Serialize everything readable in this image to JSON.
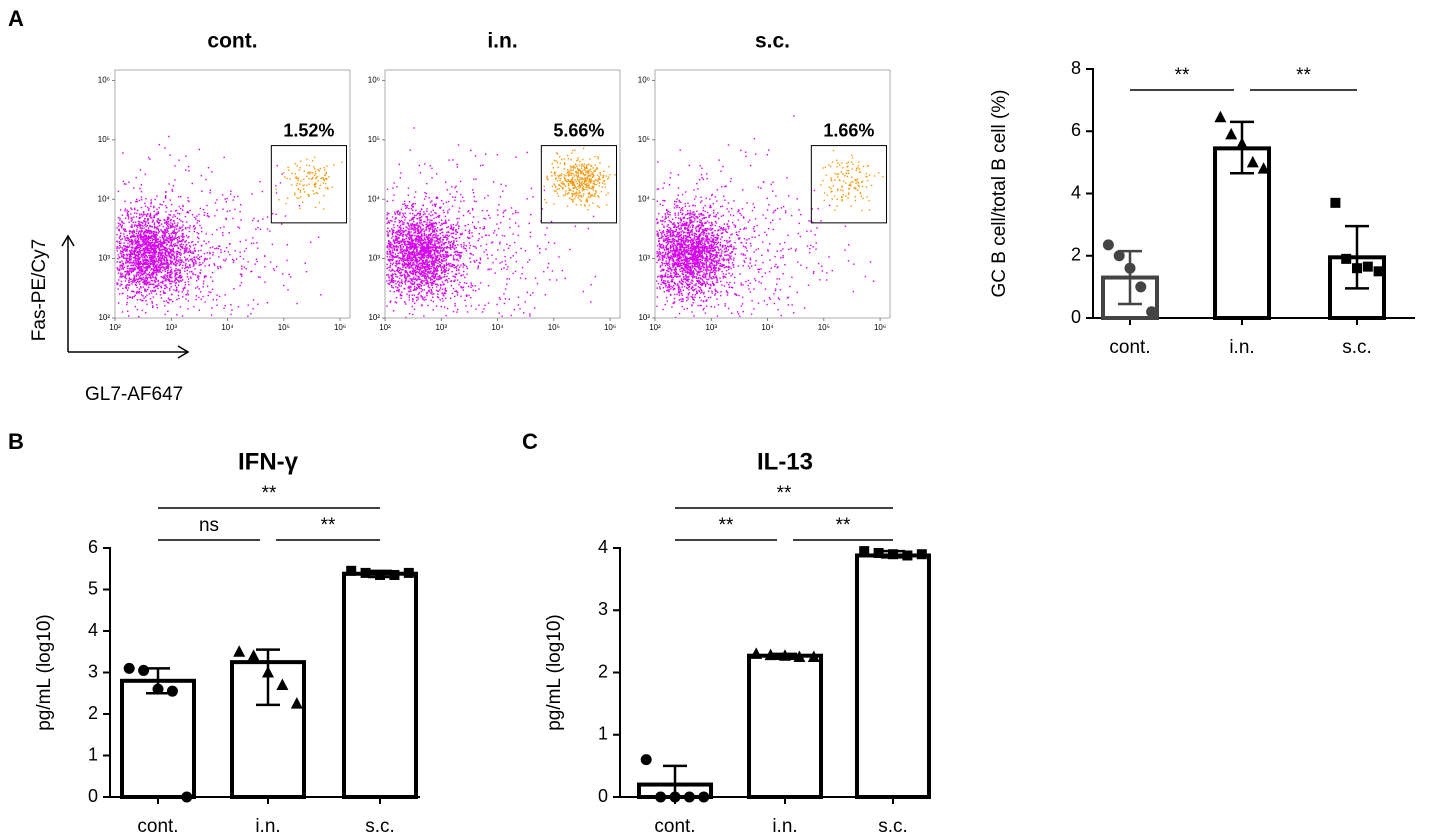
{
  "panel_labels": [
    "A",
    "B",
    "C"
  ],
  "flow_axes": {
    "y_label": "Fas-PE/Cy7",
    "x_label": "GL7-AF647"
  },
  "chart_data": [
    {
      "type": "flow",
      "title": "cont.",
      "values": [
        1.52
      ],
      "value_labels": [
        "1.52%"
      ],
      "log_scale": true,
      "xlim": [
        100,
        1500000
      ],
      "ylim": [
        100,
        1500000
      ],
      "xticks": [
        {
          "value": 100,
          "label": "10²"
        },
        {
          "value": 1000,
          "label": "10³"
        },
        {
          "value": 10000,
          "label": "10⁴"
        },
        {
          "value": 100000,
          "label": "10⁵"
        },
        {
          "value": 1000000,
          "label": "10⁶"
        }
      ],
      "yticks": [
        {
          "value": 100,
          "label": "10²"
        },
        {
          "value": 1000,
          "label": "10³"
        },
        {
          "value": 10000,
          "label": "10⁴"
        },
        {
          "value": 100000,
          "label": "10⁵"
        },
        {
          "value": 1000000,
          "label": "10⁶"
        }
      ],
      "color": "#d600f0",
      "gate_color": "#f39a10"
    },
    {
      "type": "flow",
      "title": "i.n.",
      "values": [
        5.66
      ],
      "value_labels": [
        "5.66%"
      ],
      "log_scale": true,
      "xlim": [
        100,
        1500000
      ],
      "ylim": [
        100,
        1500000
      ],
      "xticks": [
        {
          "value": 100,
          "label": "10²"
        },
        {
          "value": 1000,
          "label": "10³"
        },
        {
          "value": 10000,
          "label": "10⁴"
        },
        {
          "value": 100000,
          "label": "10⁵"
        },
        {
          "value": 1000000,
          "label": "10⁶"
        }
      ],
      "yticks": [
        {
          "value": 100,
          "label": "10²"
        },
        {
          "value": 1000,
          "label": "10³"
        },
        {
          "value": 10000,
          "label": "10⁴"
        },
        {
          "value": 100000,
          "label": "10⁵"
        },
        {
          "value": 1000000,
          "label": "10⁶"
        }
      ],
      "color": "#d600f0",
      "gate_color": "#f39a10"
    },
    {
      "type": "flow",
      "title": "s.c.",
      "values": [
        1.66
      ],
      "value_labels": [
        "1.66%"
      ],
      "log_scale": true,
      "xlim": [
        100,
        1500000
      ],
      "ylim": [
        100,
        1500000
      ],
      "xticks": [
        {
          "value": 100,
          "label": "10²"
        },
        {
          "value": 1000,
          "label": "10³"
        },
        {
          "value": 10000,
          "label": "10⁴"
        },
        {
          "value": 100000,
          "label": "10⁵"
        },
        {
          "value": 1000000,
          "label": "10⁶"
        }
      ],
      "yticks": [
        {
          "value": 100,
          "label": "10²"
        },
        {
          "value": 1000,
          "label": "10³"
        },
        {
          "value": 10000,
          "label": "10⁴"
        },
        {
          "value": 100000,
          "label": "10⁵"
        },
        {
          "value": 1000000,
          "label": "10⁶"
        }
      ],
      "color": "#d600f0",
      "gate_color": "#f39a10"
    },
    {
      "type": "bar",
      "y_label": "GC B cell/total B cell (%)",
      "categories": [
        "cont.",
        "i.n.",
        "s.c."
      ],
      "values": [
        1.3,
        5.45,
        1.95
      ],
      "error_bars": [
        [
          0.45,
          2.15
        ],
        [
          4.65,
          6.3
        ],
        [
          0.95,
          2.95
        ]
      ],
      "points": [
        [
          2.35,
          2.0,
          1.6,
          1.0,
          0.2
        ],
        [
          6.45,
          5.9,
          5.6,
          5.0,
          4.8
        ],
        [
          3.7,
          1.9,
          1.6,
          1.65,
          1.5
        ]
      ],
      "markers": [
        "circle",
        "triangle",
        "square"
      ],
      "colors": [
        "#444444",
        "#000000",
        "#000000"
      ],
      "ylim": [
        0,
        8
      ],
      "yticks": [
        0,
        2,
        4,
        6,
        8
      ],
      "comparisons": [
        {
          "groups": [
            "cont.",
            "i.n."
          ],
          "label": "**"
        },
        {
          "groups": [
            "i.n.",
            "s.c."
          ],
          "label": "**"
        }
      ]
    },
    {
      "type": "bar",
      "title": "IFN-γ",
      "y_label": "pg/mL (log10)",
      "categories": [
        "cont.",
        "i.n.",
        "s.c."
      ],
      "values": [
        2.8,
        3.25,
        5.38
      ],
      "error_bars": [
        [
          2.5,
          3.1
        ],
        [
          2.22,
          3.55
        ],
        [
          5.3,
          5.45
        ]
      ],
      "points": [
        [
          3.1,
          3.05,
          2.6,
          2.55,
          0.0
        ],
        [
          3.5,
          3.4,
          3.0,
          2.7,
          2.25
        ],
        [
          5.45,
          5.4,
          5.35,
          5.35,
          5.4
        ]
      ],
      "markers": [
        "circle",
        "triangle",
        "square"
      ],
      "colors": [
        "#000000",
        "#000000",
        "#000000"
      ],
      "ylim": [
        0,
        6
      ],
      "yticks": [
        0,
        1,
        2,
        3,
        4,
        5,
        6
      ],
      "comparisons": [
        {
          "groups": [
            "cont.",
            "s.c."
          ],
          "label": "**"
        },
        {
          "groups": [
            "cont.",
            "i.n."
          ],
          "label": "ns"
        },
        {
          "groups": [
            "i.n.",
            "s.c."
          ],
          "label": "**"
        }
      ]
    },
    {
      "type": "bar",
      "title": "IL-13",
      "y_label": "pg/mL (log10)",
      "categories": [
        "cont.",
        "i.n.",
        "s.c."
      ],
      "values": [
        0.2,
        2.27,
        3.88
      ],
      "error_bars": [
        [
          0.0,
          0.5
        ],
        [
          2.22,
          2.3
        ],
        [
          3.85,
          3.95
        ]
      ],
      "points": [
        [
          0.6,
          0.0,
          0.0,
          0.0,
          0.0
        ],
        [
          2.3,
          2.28,
          2.27,
          2.25,
          2.25
        ],
        [
          3.95,
          3.92,
          3.9,
          3.88,
          3.9
        ]
      ],
      "markers": [
        "circle",
        "triangle",
        "square"
      ],
      "colors": [
        "#000000",
        "#000000",
        "#000000"
      ],
      "ylim": [
        0,
        4
      ],
      "yticks": [
        0,
        1,
        2,
        3,
        4
      ],
      "comparisons": [
        {
          "groups": [
            "cont.",
            "s.c."
          ],
          "label": "**"
        },
        {
          "groups": [
            "cont.",
            "i.n."
          ],
          "label": "**"
        },
        {
          "groups": [
            "i.n.",
            "s.c."
          ],
          "label": "**"
        }
      ]
    }
  ]
}
